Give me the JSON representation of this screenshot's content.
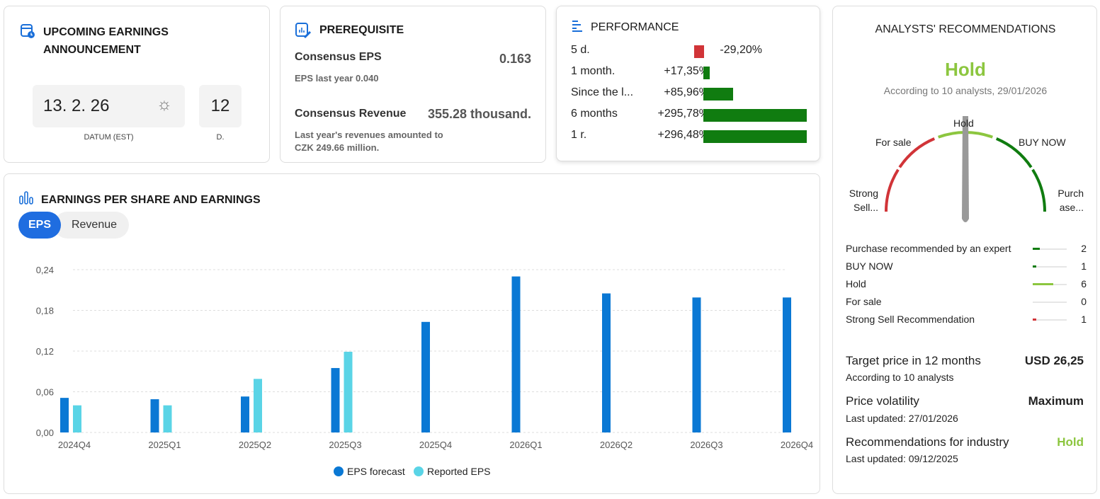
{
  "earnings": {
    "title_line1": "UPCOMING EARNINGS",
    "title_line2": "ANNOUNCEMENT",
    "date": "13. 2. 26",
    "date_label": "DATUM (EST)",
    "days": "12",
    "days_label": "D.",
    "icon": "calendar-clock-icon",
    "time_icon": "sun-icon"
  },
  "prerequisite": {
    "title": "PREREQUISITE",
    "icon": "chart-edit-icon",
    "eps_label": "Consensus EPS",
    "eps_value": "0.163",
    "eps_sub": "EPS last year 0.040",
    "rev_label": "Consensus Revenue",
    "rev_value": "355.28 thousand.",
    "rev_sub1": "Last year's revenues amounted to",
    "rev_sub2": "CZK 249.66 million."
  },
  "performance": {
    "title": "PERFORMANCE",
    "icon": "bars-icon",
    "rows": [
      {
        "label": "5 d.",
        "value": "-29,20%",
        "pct": -29.2
      },
      {
        "label": "1 month.",
        "value": "+17,35%",
        "pct": 17.35
      },
      {
        "label": "Since the l...",
        "value": "+85,96%",
        "pct": 85.96
      },
      {
        "label": "6 months",
        "value": "+295,78%",
        "pct": 295.78
      },
      {
        "label": "1 r.",
        "value": "+296,48%",
        "pct": 296.48
      }
    ]
  },
  "colors": {
    "positive": "#107c10",
    "negative": "#d13438",
    "accent": "#1a6fd9",
    "forecast": "#0a78d4",
    "reported": "#5ad4e6",
    "hold": "#8cc63f"
  },
  "eps_chart": {
    "title": "EARNINGS PER SHARE AND EARNINGS",
    "icon": "bar-chart-icon",
    "tabs": [
      {
        "label": "EPS",
        "active": true
      },
      {
        "label": "Revenue",
        "active": false
      }
    ]
  },
  "chart_data": {
    "type": "bar",
    "categories": [
      "2024Q4",
      "2025Q1",
      "2025Q2",
      "2025Q3",
      "2025Q4",
      "2026Q1",
      "2026Q2",
      "2026Q3",
      "2026Q4"
    ],
    "series": [
      {
        "name": "EPS forecast",
        "values": [
          0.051,
          0.049,
          0.053,
          0.095,
          0.163,
          0.23,
          0.205,
          0.199,
          0.199
        ]
      },
      {
        "name": "Reported EPS",
        "values": [
          0.04,
          0.04,
          0.079,
          0.119,
          null,
          null,
          null,
          null,
          null
        ]
      }
    ],
    "yticks": [
      "0,00",
      "0,06",
      "0,12",
      "0,18",
      "0,24"
    ],
    "ylim": [
      0,
      0.24
    ],
    "grid": true,
    "legend": "bottom"
  },
  "analysts": {
    "title": "ANALYSTS' RECOMMENDATIONS",
    "verdict": "Hold",
    "subtitle": "According to 10 analysts, 29/01/2026",
    "gauge_labels": {
      "strong_sell_1": "Strong",
      "strong_sell_2": "Sell...",
      "sell": "For sale",
      "hold": "Hold",
      "buy": "BUY NOW",
      "strong_buy_1": "Purch",
      "strong_buy_2": "ase..."
    },
    "rows": [
      {
        "label": "Purchase recommended by an expert",
        "count": "2",
        "n": 2,
        "color": "#107c10"
      },
      {
        "label": "BUY NOW",
        "count": "1",
        "n": 1,
        "color": "#107c10"
      },
      {
        "label": "Hold",
        "count": "6",
        "n": 6,
        "color": "#8cc63f"
      },
      {
        "label": "For sale",
        "count": "0",
        "n": 0,
        "color": "#d13438"
      },
      {
        "label": "Strong Sell Recommendation",
        "count": "1",
        "n": 1,
        "color": "#d13438"
      }
    ],
    "target_label": "Target price in 12 months",
    "target_value": "USD 26,25",
    "target_sub": "According to 10 analysts",
    "vol_label": "Price volatility",
    "vol_value": "Maximum",
    "vol_sub": "Last updated: 27/01/2026",
    "ind_label": "Recommendations for industry",
    "ind_value": "Hold",
    "ind_sub": "Last updated: 09/12/2025"
  }
}
